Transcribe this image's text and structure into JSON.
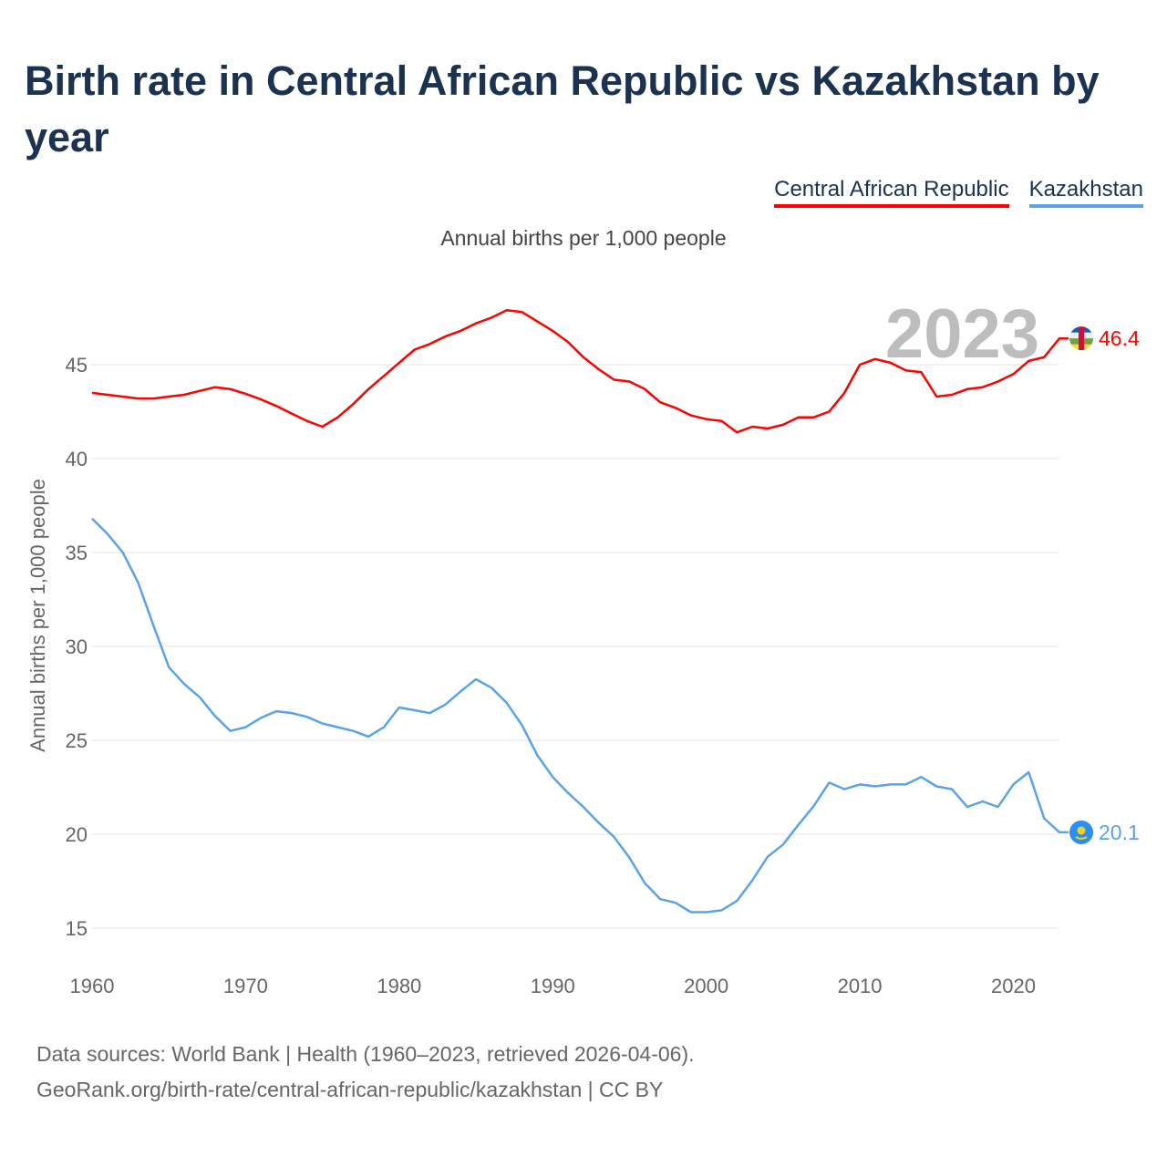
{
  "title": "Birth rate in Central African Republic vs Kazakhstan by year",
  "subtitle": "Annual births per 1,000 people",
  "year_label": "2023",
  "source_line1": "Data sources: World Bank | Health (1960–2023, retrieved 2026-04-06).",
  "source_line2": "GeoRank.org/birth-rate/central-african-republic/kazakhstan | CC BY",
  "chart_data": {
    "type": "line",
    "title": "Birth rate in Central African Republic vs Kazakhstan by year",
    "ylabel": "Annual births per 1,000 people",
    "xlabel": "",
    "xlim": [
      1960,
      2023
    ],
    "ylim": [
      15,
      48
    ],
    "yticks": [
      15,
      20,
      25,
      30,
      35,
      40,
      45
    ],
    "xticks": [
      1960,
      1970,
      1980,
      1990,
      2000,
      2010,
      2020
    ],
    "grid": true,
    "legend": "top-right",
    "x_start": 1960,
    "series": [
      {
        "name": "Central African Republic",
        "color": "#ff0000",
        "end_label": "46.4",
        "values": [
          43.5,
          43.4,
          43.3,
          43.2,
          43.2,
          43.3,
          43.4,
          43.6,
          43.8,
          43.7,
          43.45,
          43.15,
          42.8,
          42.4,
          42.0,
          41.7,
          42.2,
          42.9,
          43.7,
          44.4,
          45.1,
          45.8,
          46.1,
          46.5,
          46.8,
          47.2,
          47.5,
          47.9,
          47.8,
          47.3,
          46.8,
          46.2,
          45.4,
          44.75,
          44.2,
          44.1,
          43.7,
          43.0,
          42.7,
          42.3,
          42.1,
          42.0,
          41.4,
          41.7,
          41.6,
          41.8,
          42.2,
          42.2,
          42.5,
          43.5,
          45.0,
          45.3,
          45.1,
          44.7,
          44.6,
          43.3,
          43.4,
          43.7,
          43.8,
          44.1,
          44.5,
          45.2,
          45.4,
          46.4
        ]
      },
      {
        "name": "Kazakhstan",
        "color": "#5ba3e8",
        "end_label": "20.1",
        "values": [
          36.8,
          36.0,
          35.0,
          33.4,
          31.1,
          28.9,
          28.0,
          27.3,
          26.3,
          25.5,
          25.7,
          26.2,
          26.55,
          26.45,
          26.25,
          25.9,
          25.7,
          25.5,
          25.2,
          25.7,
          26.75,
          26.6,
          26.45,
          26.9,
          27.6,
          28.25,
          27.8,
          27.0,
          25.8,
          24.2,
          23.05,
          22.2,
          21.45,
          20.6,
          19.85,
          18.75,
          17.4,
          16.55,
          16.35,
          15.85,
          15.85,
          15.95,
          16.45,
          17.55,
          18.8,
          19.45,
          20.5,
          21.5,
          22.75,
          22.4,
          22.65,
          22.55,
          22.65,
          22.65,
          23.05,
          22.55,
          22.4,
          21.45,
          21.75,
          21.45,
          22.65,
          23.3,
          20.85,
          20.1
        ]
      }
    ]
  }
}
